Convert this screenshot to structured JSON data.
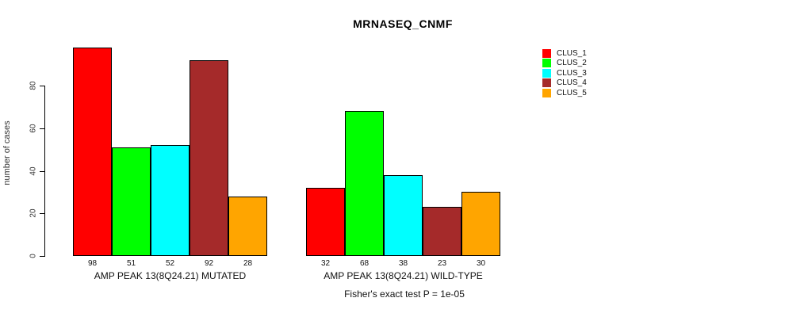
{
  "title": "MRNASEQ_CNMF",
  "footer": "Fisher's exact test P = 1e-05",
  "chart_data": {
    "type": "bar",
    "title": "MRNASEQ_CNMF",
    "xlabel": "",
    "ylabel": "number of cases",
    "ylim": [
      0,
      80
    ],
    "yticks": [
      0,
      20,
      40,
      60,
      80
    ],
    "grid": false,
    "legend_position": "right",
    "legend": [
      {
        "label": "CLUS_1",
        "color": "#ff0000"
      },
      {
        "label": "CLUS_2",
        "color": "#00ff00"
      },
      {
        "label": "CLUS_3",
        "color": "#00ffff"
      },
      {
        "label": "CLUS_4",
        "color": "#a52a2a"
      },
      {
        "label": "CLUS_5",
        "color": "#ffa500"
      }
    ],
    "groups": [
      {
        "label": "AMP PEAK 13(8Q24.21) MUTATED",
        "values": [
          98,
          51,
          52,
          92,
          28
        ]
      },
      {
        "label": "AMP PEAK 13(8Q24.21) WILD-TYPE",
        "values": [
          32,
          68,
          38,
          23,
          30
        ]
      }
    ],
    "annotation": "Fisher's exact test P = 1e-05"
  }
}
